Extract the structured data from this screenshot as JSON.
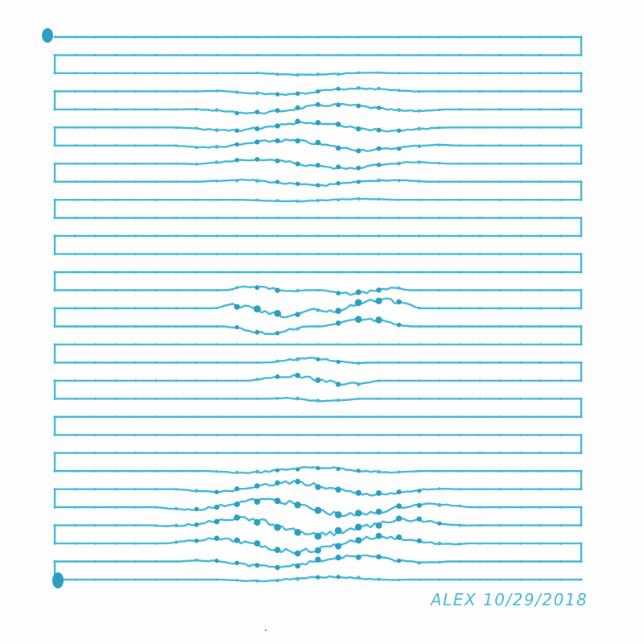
{
  "artwork": {
    "signature": "ALEX 10/29/2018",
    "colors": {
      "ink": "#45b9d6",
      "ink_dark": "#2b9fc2",
      "paper": "#fefefe",
      "speck": "#555555"
    }
  }
}
